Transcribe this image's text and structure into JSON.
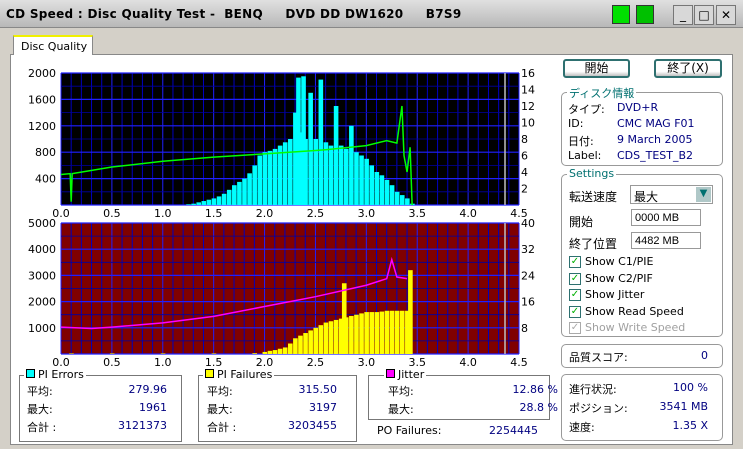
{
  "window": {
    "title": "CD Speed : Disc Quality Test -  BENQ     DVD DD DW1620     B7S9"
  },
  "tab": {
    "label": "Disc Quality"
  },
  "buttons": {
    "start": "開始",
    "exit": "終了(X)"
  },
  "disc_info": {
    "title": "ディスク情報",
    "rows": [
      {
        "label": "タイプ:",
        "value": "DVD+R"
      },
      {
        "label": "ID:",
        "value": "CMC MAG F01"
      },
      {
        "label": "日付:",
        "value": "9 March 2005"
      },
      {
        "label": "Label:",
        "value": "CDS_TEST_B2"
      }
    ]
  },
  "settings": {
    "title": "Settings",
    "speed_label": "転送速度",
    "speed_value": "最大",
    "start_label": "開始",
    "start_value": "0000 MB",
    "end_label": "終了位置",
    "end_value": "4482 MB",
    "checkboxes": [
      {
        "label": "Show C1/PIE",
        "checked": true,
        "enabled": true
      },
      {
        "label": "Show C2/PIF",
        "checked": true,
        "enabled": true
      },
      {
        "label": "Show Jitter",
        "checked": true,
        "enabled": true
      },
      {
        "label": "Show Read Speed",
        "checked": true,
        "enabled": true
      },
      {
        "label": "Show Write Speed",
        "checked": true,
        "enabled": false
      }
    ]
  },
  "quality": {
    "label": "品質スコア:",
    "value": "0"
  },
  "progress": {
    "rows": [
      {
        "label": "進行状況:",
        "value": "100 %"
      },
      {
        "label": "ポジション:",
        "value": "3541 MB"
      },
      {
        "label": "速度:",
        "value": "1.35 X"
      }
    ]
  },
  "stats": {
    "pi_errors": {
      "title": "PI Errors",
      "color": "#00ffff",
      "avg_label": "平均:",
      "avg": "279.96",
      "max_label": "最大:",
      "max": "1961",
      "total_label": "合計 :",
      "total": "3121373"
    },
    "pi_failures": {
      "title": "PI Failures",
      "color": "#ffff00",
      "avg_label": "平均:",
      "avg": "315.50",
      "max_label": "最大:",
      "max": "3197",
      "total_label": "合計 :",
      "total": "3203455"
    },
    "jitter": {
      "title": "Jitter",
      "color": "#ff00ff",
      "avg_label": "平均:",
      "avg": "12.86 %",
      "max_label": "最大:",
      "max": "28.8 %"
    },
    "po_failures": {
      "label": "PO Failures:",
      "value": "2254445"
    }
  },
  "chart_data": [
    {
      "type": "bar",
      "xlim": [
        0,
        4.5
      ],
      "ylim": [
        0,
        2000
      ],
      "y2lim": [
        0,
        16
      ],
      "background": "#000000",
      "grid": true,
      "xticks": [
        "0.0",
        "0.5",
        "1.0",
        "1.5",
        "2.0",
        "2.5",
        "3.0",
        "3.5",
        "4.0",
        "4.5"
      ],
      "yticks": [
        "2000",
        "1600",
        "1200",
        "800",
        "400"
      ],
      "y2ticks": [
        "16",
        "14",
        "12",
        "10",
        "8",
        "6",
        "4",
        "2"
      ],
      "series": [
        {
          "type": "bar",
          "color": "#00ffff",
          "x": [
            1.25,
            1.3,
            1.35,
            1.4,
            1.45,
            1.5,
            1.55,
            1.6,
            1.65,
            1.7,
            1.75,
            1.8,
            1.85,
            1.9,
            1.95,
            2.0,
            2.05,
            2.1,
            2.15,
            2.2,
            2.25,
            2.3,
            2.33,
            2.35,
            2.38,
            2.4,
            2.45,
            2.5,
            2.55,
            2.6,
            2.65,
            2.7,
            2.75,
            2.8,
            2.85,
            2.9,
            2.95,
            3.0,
            3.05,
            3.1,
            3.15,
            3.2,
            3.25,
            3.3,
            3.35,
            3.4,
            3.45
          ],
          "y": [
            10,
            20,
            40,
            60,
            80,
            100,
            130,
            170,
            230,
            300,
            350,
            400,
            480,
            600,
            750,
            800,
            820,
            850,
            900,
            950,
            1000,
            1400,
            1930,
            1100,
            1950,
            1000,
            1700,
            1000,
            1900,
            950,
            900,
            1500,
            900,
            850,
            1200,
            800,
            750,
            700,
            600,
            500,
            450,
            380,
            300,
            200,
            150,
            100,
            20
          ]
        },
        {
          "type": "line",
          "axis": "right",
          "color": "#00ff00",
          "x": [
            0,
            0.09,
            0.1,
            0.11,
            0.5,
            1.0,
            1.5,
            2.0,
            2.5,
            2.6,
            3.0,
            3.2,
            3.3,
            3.35,
            3.37,
            3.4,
            3.43,
            3.45
          ],
          "y": [
            3.7,
            3.8,
            0.4,
            3.8,
            4.6,
            5.3,
            5.8,
            6.2,
            6.6,
            6.7,
            7.2,
            7.8,
            7.5,
            12,
            6,
            4,
            7,
            0
          ]
        }
      ]
    },
    {
      "type": "bar",
      "xlim": [
        0,
        4.5
      ],
      "ylim": [
        0,
        5000
      ],
      "y2lim": [
        0,
        40
      ],
      "background": "#800000",
      "grid": true,
      "xticks": [
        "0.0",
        "0.5",
        "1.0",
        "1.5",
        "2.0",
        "2.5",
        "3.0",
        "3.5",
        "4.0",
        "4.5"
      ],
      "yticks": [
        "5000",
        "4000",
        "3000",
        "2000",
        "1000"
      ],
      "y2ticks": [
        "40",
        "32",
        "24",
        "16",
        "8"
      ],
      "series": [
        {
          "type": "bar",
          "color": "#ffff00",
          "x": [
            0.1,
            0.5,
            1.0,
            1.5,
            1.9,
            2.0,
            2.05,
            2.1,
            2.15,
            2.2,
            2.25,
            2.3,
            2.35,
            2.4,
            2.45,
            2.5,
            2.55,
            2.6,
            2.65,
            2.7,
            2.75,
            2.78,
            2.8,
            2.85,
            2.9,
            2.95,
            3.0,
            3.05,
            3.1,
            3.15,
            3.2,
            3.25,
            3.3,
            3.35,
            3.4,
            3.43
          ],
          "y": [
            20,
            20,
            20,
            20,
            30,
            80,
            120,
            150,
            200,
            250,
            400,
            600,
            700,
            800,
            900,
            1000,
            1100,
            1200,
            1250,
            1300,
            1350,
            2700,
            1400,
            1450,
            1500,
            1550,
            1600,
            1600,
            1600,
            1620,
            1650,
            1650,
            1650,
            1650,
            1650,
            3200
          ]
        },
        {
          "type": "line",
          "axis": "right",
          "color": "#ff00ff",
          "x": [
            0,
            0.3,
            0.5,
            1.0,
            1.5,
            2.0,
            2.5,
            3.0,
            3.2,
            3.25,
            3.3,
            3.4
          ],
          "y": [
            8.2,
            7.8,
            8.2,
            9.5,
            11.5,
            14.5,
            17.5,
            21,
            23,
            28.8,
            23.5,
            23
          ]
        }
      ]
    }
  ]
}
